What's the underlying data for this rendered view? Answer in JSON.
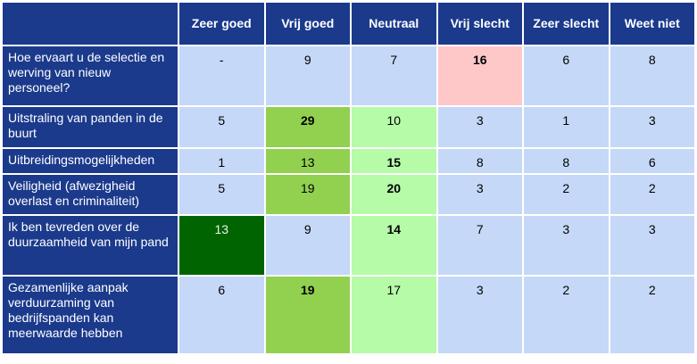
{
  "table": {
    "header": [
      "Zeer goed",
      "Vrij goed",
      "Neutraal",
      "Vrij slecht",
      "Zeer slecht",
      "Weet niet"
    ],
    "rows": [
      [
        "Hoe ervaart u de selectie en werving van nieuw personeel?",
        "-",
        9,
        7,
        16,
        6,
        8
      ],
      [
        "Uitstraling van panden in de buurt",
        5,
        29,
        10,
        3,
        1,
        3
      ],
      [
        "Uitbreidingsmogelijkheden",
        1,
        13,
        15,
        8,
        8,
        6
      ],
      [
        "Veiligheid (afwezigheid overlast en criminaliteit)",
        5,
        19,
        20,
        3,
        2,
        2
      ],
      [
        "Ik ben tevreden over de duurzaamheid van mijn pand",
        13,
        9,
        14,
        7,
        3,
        3
      ],
      [
        "Gezamenlijke aanpak verduurzaming van bedrijfspanden kan meerwaarde hebben",
        6,
        19,
        17,
        3,
        2,
        2
      ]
    ]
  }
}
